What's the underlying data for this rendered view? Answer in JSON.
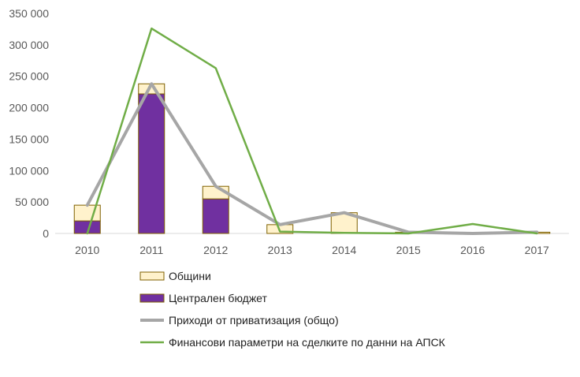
{
  "chart_data": {
    "type": "bar",
    "stacked": true,
    "categories": [
      "2010",
      "2011",
      "2012",
      "2013",
      "2014",
      "2015",
      "2016",
      "2017"
    ],
    "y_ticks": [
      "0",
      "50 000",
      "100 000",
      "150 000",
      "200 000",
      "250 000",
      "300 000",
      "350 000"
    ],
    "ylim": [
      0,
      350000
    ],
    "grid": false,
    "legend_position": "bottom",
    "bar_series": [
      {
        "name": "Централен бюджет",
        "color": "#7030a0",
        "values": [
          20000,
          222000,
          55000,
          0,
          0,
          0,
          0,
          0
        ]
      },
      {
        "name": "Общини",
        "color": "#fff2cc",
        "values": [
          25000,
          16000,
          20000,
          14000,
          33000,
          2000,
          0,
          2000
        ]
      }
    ],
    "line_series": [
      {
        "name": "Приходи от приватизация (общо)",
        "color": "#a6a6a6",
        "values": [
          45000,
          238000,
          75000,
          14000,
          33000,
          2000,
          0,
          2000
        ]
      },
      {
        "name": "Финансови параметри на сделките по данни на АПСК",
        "color": "#70ad47",
        "values": [
          0,
          326000,
          263000,
          3000,
          1000,
          0,
          15000,
          0
        ]
      }
    ],
    "bar_outline_color": "#7f6000",
    "legend": [
      {
        "label": "Общини",
        "kind": "box",
        "color": "#fff2cc"
      },
      {
        "label": "Централен бюджет",
        "kind": "box",
        "color": "#7030a0"
      },
      {
        "label": "Приходи от приватизация (общо)",
        "kind": "line",
        "color": "#a6a6a6"
      },
      {
        "label": "Финансови параметри на сделките по данни на АПСК",
        "kind": "line",
        "color": "#70ad47"
      }
    ]
  }
}
